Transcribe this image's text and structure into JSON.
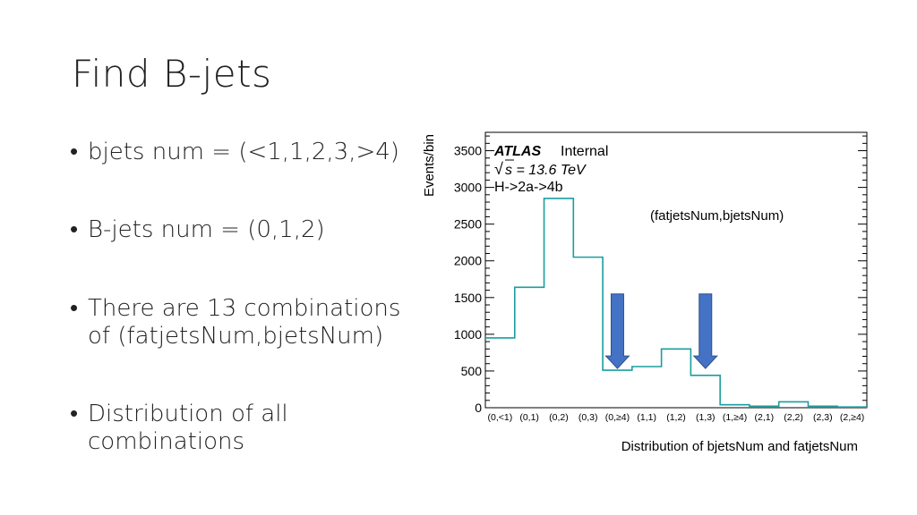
{
  "slide": {
    "title": "Find B-jets",
    "bullets": [
      {
        "text": "bjets num = (<1,1,2,3,>4)"
      },
      {
        "text": "B-jets num = (0,1,2)"
      },
      {
        "text": "There are 13 combinations of (fatjetsNum,bjetsNum)"
      },
      {
        "text": "Distribution of all combinations"
      }
    ]
  },
  "chart_data": {
    "type": "histogram",
    "categories": [
      "(0,<1)",
      "(0,1)",
      "(0,2)",
      "(0,3)",
      "(0,≥4)",
      "(1,1)",
      "(1,2)",
      "(1,3)",
      "(1,≥4)",
      "(2,1)",
      "(2,2)",
      "(2,3)",
      "(2,≥4)"
    ],
    "values": [
      950,
      1640,
      2850,
      2050,
      510,
      560,
      800,
      440,
      40,
      20,
      80,
      20,
      10
    ],
    "xlabel": "Distribution of bjetsNum and fatjetsNum",
    "ylabel": "Events/bin",
    "ylim": [
      0,
      3750
    ],
    "yticks": [
      0,
      500,
      1000,
      1500,
      2000,
      2500,
      3000,
      3500
    ],
    "grid": false,
    "line_color": "#1a9e9e",
    "arrow_color": "#4472c4",
    "annotations": {
      "atlas": "ATLAS",
      "internal": "Internal",
      "sqrt_sym": "√",
      "energy": "s = 13.6",
      "energy_unit": "TeV",
      "process": "H->2a->4b",
      "combo_label": "(fatjetsNum,bjetsNum)"
    },
    "arrows_at": [
      "(0,≥4)",
      "(1,3)"
    ]
  }
}
